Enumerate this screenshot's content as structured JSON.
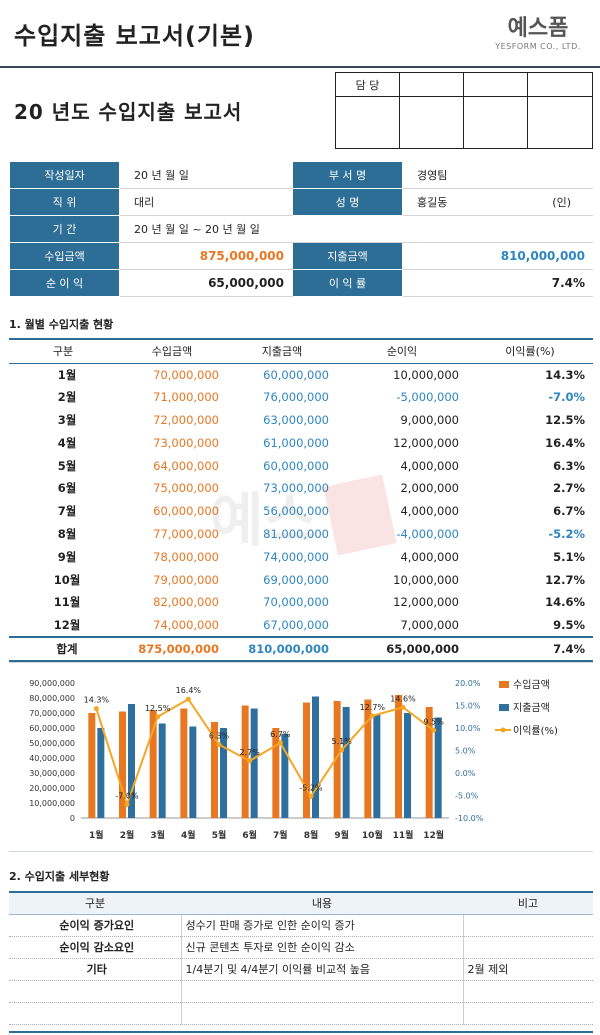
{
  "header": {
    "title": "수입지출 보고서(기본)",
    "logo_main": "예스폼",
    "logo_sub": "YESFORM CO., LTD."
  },
  "report_title": "20  년도 수입지출 보고서",
  "approval": {
    "label": "담  당"
  },
  "info": {
    "date_label": "작성일자",
    "date_value": "20  년  월  일",
    "dept_label": "부 서 명",
    "dept_value": "경영팀",
    "position_label": "직    위",
    "position_value": "대리",
    "name_label": "성    명",
    "name_value": "홍길동",
    "seal": "(인)",
    "period_label": "기    간",
    "period_value": "20  년  월  일 ~ 20  년  월  일",
    "income_label": "수입금액",
    "income_value": "875,000,000",
    "expense_label": "지출금액",
    "expense_value": "810,000,000",
    "profit_label": "순 이 익",
    "profit_value": "65,000,000",
    "rate_label": "이 익 률",
    "rate_value": "7.4%"
  },
  "section1": {
    "title": "1. 월별 수입지출 현황"
  },
  "monthly": {
    "headers": [
      "구분",
      "수입금액",
      "지출금액",
      "순이익",
      "이익률(%)"
    ],
    "rows": [
      [
        "1월",
        "70,000,000",
        "60,000,000",
        "10,000,000",
        "14.3%"
      ],
      [
        "2월",
        "71,000,000",
        "76,000,000",
        "-5,000,000",
        "-7.0%"
      ],
      [
        "3월",
        "72,000,000",
        "63,000,000",
        "9,000,000",
        "12.5%"
      ],
      [
        "4월",
        "73,000,000",
        "61,000,000",
        "12,000,000",
        "16.4%"
      ],
      [
        "5월",
        "64,000,000",
        "60,000,000",
        "4,000,000",
        "6.3%"
      ],
      [
        "6월",
        "75,000,000",
        "73,000,000",
        "2,000,000",
        "2.7%"
      ],
      [
        "7월",
        "60,000,000",
        "56,000,000",
        "4,000,000",
        "6.7%"
      ],
      [
        "8월",
        "77,000,000",
        "81,000,000",
        "-4,000,000",
        "-5.2%"
      ],
      [
        "9월",
        "78,000,000",
        "74,000,000",
        "4,000,000",
        "5.1%"
      ],
      [
        "10월",
        "79,000,000",
        "69,000,000",
        "10,000,000",
        "12.7%"
      ],
      [
        "11월",
        "82,000,000",
        "70,000,000",
        "12,000,000",
        "14.6%"
      ],
      [
        "12월",
        "74,000,000",
        "67,000,000",
        "7,000,000",
        "9.5%"
      ]
    ],
    "total": [
      "합계",
      "875,000,000",
      "810,000,000",
      "65,000,000",
      "7.4%"
    ]
  },
  "colors": {
    "income": "#e87722",
    "expense": "#2e6f9e",
    "rate": "#f5a623",
    "header_blue": "#2d6e96"
  },
  "chart_data": {
    "type": "bar",
    "categories": [
      "1월",
      "2월",
      "3월",
      "4월",
      "5월",
      "6월",
      "7월",
      "8월",
      "9월",
      "10월",
      "11월",
      "12월"
    ],
    "series": [
      {
        "name": "수입금액",
        "type": "bar",
        "axis": "left",
        "values": [
          70000000,
          71000000,
          72000000,
          73000000,
          64000000,
          75000000,
          60000000,
          77000000,
          78000000,
          79000000,
          82000000,
          74000000
        ]
      },
      {
        "name": "지출금액",
        "type": "bar",
        "axis": "left",
        "values": [
          60000000,
          76000000,
          63000000,
          61000000,
          60000000,
          73000000,
          56000000,
          81000000,
          74000000,
          69000000,
          70000000,
          67000000
        ]
      },
      {
        "name": "이익률(%)",
        "type": "line",
        "axis": "right",
        "values": [
          14.3,
          -7.0,
          12.5,
          16.4,
          6.3,
          2.7,
          6.7,
          -5.2,
          5.1,
          12.7,
          14.6,
          9.5
        ]
      }
    ],
    "point_labels": [
      "14.3%",
      "-7.0%",
      "12.5%",
      "16.4%",
      "6.3%",
      "2.7%",
      "6.7%",
      "-5.2%",
      "5.1%",
      "12.7%",
      "14.6%",
      "9.5%"
    ],
    "yticks_left": [
      "0",
      "10,000,000",
      "20,000,000",
      "30,000,000",
      "40,000,000",
      "50,000,000",
      "60,000,000",
      "70,000,000",
      "80,000,000",
      "90,000,000"
    ],
    "yticks_right": [
      "-10.0%",
      "-5.0%",
      "0.0%",
      "5.0%",
      "10.0%",
      "15.0%",
      "20.0%"
    ],
    "ylim_left": [
      0,
      90000000
    ],
    "ylim_right": [
      -10,
      20
    ],
    "legend_position": "right"
  },
  "section2": {
    "title": "2. 수입지출 세부현황"
  },
  "detail": {
    "headers": [
      "구분",
      "내용",
      "비고"
    ],
    "rows": [
      [
        "순이익 증가요인",
        "성수기 판매 증가로 인한 순이익 증가",
        ""
      ],
      [
        "순이익 감소요인",
        "신규 콘텐츠 투자로 인한 순이익 감소",
        ""
      ],
      [
        "기타",
        "1/4분기 및 4/4분기 이익률 비교적 높음",
        "2월 제외"
      ],
      [
        "",
        "",
        ""
      ],
      [
        "",
        "",
        ""
      ]
    ]
  }
}
